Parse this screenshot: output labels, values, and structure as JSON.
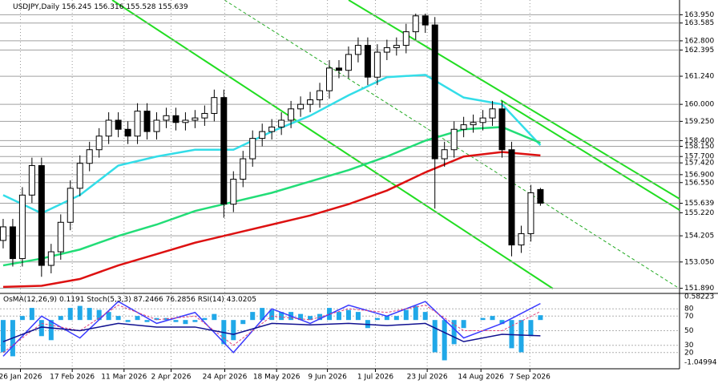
{
  "chart_data": [
    {
      "type": "candlestick",
      "symbol": "USDJPY,Daily",
      "ohlc": [
        156.245,
        156.316,
        155.528,
        155.639
      ],
      "xlim": [
        -0.33,
        70.5
      ],
      "xticks": [
        {
          "value": 1.8,
          "label": "26 Jan 2026"
        },
        {
          "value": 7.2,
          "label": "17 Feb 2026"
        },
        {
          "value": 12.6,
          "label": "11 Mar 2026"
        },
        {
          "value": 17.5,
          "label": "2 Apr 2026"
        },
        {
          "value": 23.1,
          "label": "24 Apr 2026"
        },
        {
          "value": 28.5,
          "label": "18 May 2026"
        },
        {
          "value": 33.8,
          "label": "9 Jun 2026"
        },
        {
          "value": 38.8,
          "label": "1 Jul 2026"
        },
        {
          "value": 44.2,
          "label": "23 Jul 2026"
        },
        {
          "value": 49.8,
          "label": "14 Aug 2026"
        },
        {
          "value": 54.9,
          "label": "7 Sep 2026"
        }
      ],
      "ylim": [
        151.7,
        164.6
      ],
      "yticks": [
        {
          "value": 163.95,
          "label": "163.950"
        },
        163.585,
        {
          "value": 162.8,
          "label": "162.800"
        },
        162.395,
        {
          "value": 161.24,
          "label": "161.240"
        },
        {
          "value": 160,
          "label": "160.000"
        },
        {
          "value": 159.25,
          "label": "159.250"
        },
        {
          "value": 158.4,
          "label": "158.400"
        },
        {
          "value": 158.15,
          "label": "158.150"
        },
        {
          "value": 157.7,
          "label": "157.700"
        },
        {
          "value": 157.42,
          "label": "157.420"
        },
        {
          "value": 156.9,
          "label": "156.900"
        },
        {
          "value": 156.55,
          "label": "156.550"
        },
        155.639,
        {
          "value": 155.22,
          "label": "155.220"
        },
        154.205,
        {
          "value": 153.05,
          "label": "153.050"
        },
        {
          "value": 151.89,
          "label": "151.890"
        }
      ],
      "grid": true,
      "up_color": "#ffffff",
      "down_color": "#000000",
      "open": [
        154.0,
        154.6,
        153.2,
        156.0,
        157.3,
        152.9,
        153.5,
        154.8,
        156.3,
        157.4,
        158.0,
        158.6,
        159.3,
        158.9,
        158.6,
        159.7,
        158.8,
        159.3,
        159.5,
        159.2,
        159.3,
        159.4,
        159.6,
        160.3,
        155.6,
        156.7,
        157.6,
        158.5,
        158.8,
        159.0,
        159.3,
        159.8,
        160.0,
        160.2,
        160.6,
        161.6,
        161.5,
        162.2,
        162.6,
        161.2,
        162.3,
        162.5,
        162.6,
        163.2,
        163.9,
        163.5,
        157.6,
        158.0,
        158.9,
        159.1,
        159.2,
        159.4,
        159.8,
        158.0,
        153.8,
        154.3,
        156.245
      ],
      "high": [
        154.95,
        154.95,
        156.35,
        157.65,
        157.65,
        153.85,
        155.15,
        156.65,
        157.75,
        158.35,
        158.95,
        159.65,
        159.65,
        159.25,
        160.05,
        160.05,
        159.65,
        159.85,
        159.85,
        159.65,
        159.75,
        159.95,
        160.65,
        160.65,
        157.05,
        157.95,
        158.85,
        159.15,
        159.35,
        159.65,
        160.15,
        160.35,
        160.55,
        160.95,
        161.95,
        161.95,
        162.55,
        162.95,
        162.95,
        162.65,
        162.85,
        162.95,
        163.55,
        164.0,
        164.0,
        163.85,
        158.35,
        159.25,
        159.45,
        159.55,
        159.75,
        160.15,
        160.15,
        158.35,
        154.65,
        156.45,
        156.316
      ],
      "low": [
        153.65,
        152.85,
        152.85,
        155.65,
        152.4,
        152.55,
        153.15,
        154.45,
        155.95,
        157.05,
        157.65,
        158.25,
        158.55,
        158.25,
        158.25,
        158.45,
        158.45,
        158.95,
        158.85,
        158.85,
        158.95,
        159.05,
        159.25,
        155.0,
        155.25,
        156.35,
        157.25,
        158.15,
        158.45,
        158.65,
        158.95,
        159.45,
        159.65,
        159.85,
        160.25,
        161.15,
        161.15,
        161.85,
        160.85,
        160.85,
        161.95,
        162.15,
        162.25,
        162.85,
        163.15,
        155.4,
        157.25,
        157.65,
        158.55,
        158.75,
        158.85,
        159.05,
        157.65,
        153.3,
        153.45,
        153.95,
        155.528
      ],
      "close": [
        154.6,
        153.2,
        156.0,
        157.3,
        152.9,
        153.5,
        154.8,
        156.3,
        157.4,
        158.0,
        158.6,
        159.3,
        158.9,
        158.6,
        159.7,
        158.8,
        159.3,
        159.5,
        159.2,
        159.3,
        159.4,
        159.6,
        160.3,
        155.6,
        156.7,
        157.6,
        158.5,
        158.8,
        159.0,
        159.3,
        159.8,
        160.0,
        160.2,
        160.6,
        161.6,
        161.5,
        162.2,
        162.6,
        161.2,
        162.3,
        162.5,
        162.6,
        163.2,
        163.9,
        163.5,
        157.6,
        158.0,
        158.9,
        159.1,
        159.2,
        159.4,
        159.8,
        158.0,
        153.8,
        154.3,
        156.1,
        155.639
      ],
      "series": [
        {
          "color": "#33dde8",
          "x": [
            0,
            4,
            8,
            12,
            16,
            20,
            24,
            28,
            32,
            36,
            40,
            44,
            48,
            52,
            56
          ],
          "values": [
            156.0,
            155.2,
            156.0,
            157.3,
            157.7,
            158.0,
            158.0,
            158.8,
            159.5,
            160.4,
            161.2,
            161.3,
            160.3,
            160.0,
            158.2
          ]
        },
        {
          "color": "#22dd77",
          "x": [
            0,
            4,
            8,
            12,
            16,
            20,
            24,
            28,
            32,
            36,
            40,
            44,
            48,
            52,
            56
          ],
          "values": [
            152.9,
            153.2,
            153.6,
            154.2,
            154.7,
            155.3,
            155.7,
            156.1,
            156.6,
            157.1,
            157.7,
            158.4,
            158.9,
            159.0,
            158.3
          ]
        },
        {
          "color": "#dd1111",
          "x": [
            0,
            4,
            8,
            12,
            16,
            20,
            24,
            28,
            32,
            36,
            40,
            44,
            48,
            52,
            56
          ],
          "values": [
            151.95,
            152.0,
            152.3,
            152.9,
            153.4,
            153.9,
            154.3,
            154.7,
            155.1,
            155.6,
            156.2,
            157.0,
            157.7,
            157.9,
            157.75
          ]
        }
      ]
    },
    {
      "type": "oscillator",
      "ylim": [
        0,
        100
      ],
      "yticks": [
        80,
        70,
        50,
        30,
        20
      ],
      "y2lim": [
        -1.17,
        0.64
      ],
      "y2ticks": [
        0.58223,
        -1.04994
      ],
      "series": [
        {
          "name": "OsMA(12,26,9)",
          "color": "#20a8e8",
          "axis": "y2",
          "values": [
            -0.8,
            -0.9,
            0.1,
            0.3,
            -0.4,
            -0.5,
            0.1,
            0.3,
            0.35,
            0.3,
            0.25,
            0.2,
            0.1,
            -0.05,
            0.1,
            -0.05,
            0.05,
            0.05,
            -0.05,
            -0.1,
            -0.05,
            0.05,
            0.15,
            -0.6,
            -0.5,
            -0.1,
            0.2,
            0.3,
            0.25,
            0.2,
            0.2,
            0.15,
            0.1,
            0.15,
            0.3,
            0.2,
            0.25,
            0.2,
            -0.2,
            0.05,
            0.1,
            0.1,
            0.25,
            0.35,
            0.2,
            -0.8,
            -1.0,
            -0.6,
            -0.2,
            0.0,
            0.05,
            0.1,
            -0.1,
            -0.7,
            -0.8,
            -0.4,
            0.1191
          ]
        },
        {
          "name": "Stoch(5,3,3)",
          "color": "#3a3aff",
          "x": [
            0,
            4,
            8,
            12,
            16,
            20,
            24,
            28,
            32,
            36,
            40,
            44,
            48,
            52,
            56
          ],
          "values": [
            15,
            70,
            40,
            90,
            60,
            75,
            20,
            80,
            60,
            85,
            70,
            90,
            40,
            60,
            87.2466
          ]
        },
        {
          "color": "#e0407a",
          "x": [
            0,
            4,
            8,
            12,
            16,
            20,
            24,
            28,
            32,
            36,
            40,
            44,
            48,
            52,
            56
          ],
          "values": [
            20,
            60,
            50,
            85,
            65,
            70,
            30,
            70,
            65,
            80,
            75,
            85,
            50,
            50,
            76.2856
          ]
        },
        {
          "name": "RSI(14)",
          "color": "#101090",
          "x": [
            0,
            4,
            8,
            12,
            16,
            20,
            24,
            28,
            32,
            36,
            40,
            44,
            48,
            52,
            56
          ],
          "values": [
            35,
            55,
            50,
            60,
            55,
            55,
            45,
            60,
            58,
            60,
            57,
            60,
            35,
            45,
            43.0205
          ]
        }
      ]
    }
  ]
}
